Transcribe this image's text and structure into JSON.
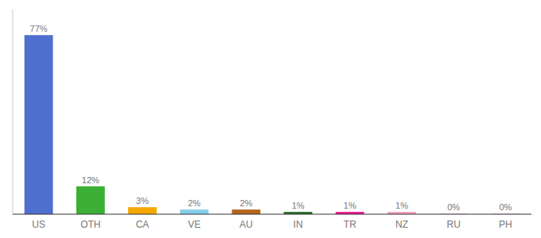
{
  "chart_data": {
    "type": "bar",
    "categories": [
      "US",
      "OTH",
      "CA",
      "VE",
      "AU",
      "IN",
      "TR",
      "NZ",
      "RU",
      "PH"
    ],
    "values": [
      77,
      12,
      3,
      2,
      2,
      1,
      1,
      1,
      0.2,
      0.2
    ],
    "value_labels": [
      "77%",
      "12%",
      "3%",
      "2%",
      "2%",
      "1%",
      "1%",
      "1%",
      "0%",
      "0%"
    ],
    "colors": [
      "#4f6fce",
      "#3cb034",
      "#f5a800",
      "#87ceeb",
      "#b5651d",
      "#2a6e2a",
      "#f01893",
      "#f4a0c0",
      "#f4a0c0",
      "#f4a0c0"
    ],
    "ylim": [
      0,
      88
    ],
    "data_labels": true,
    "grid": false,
    "tick_labels": "x"
  }
}
